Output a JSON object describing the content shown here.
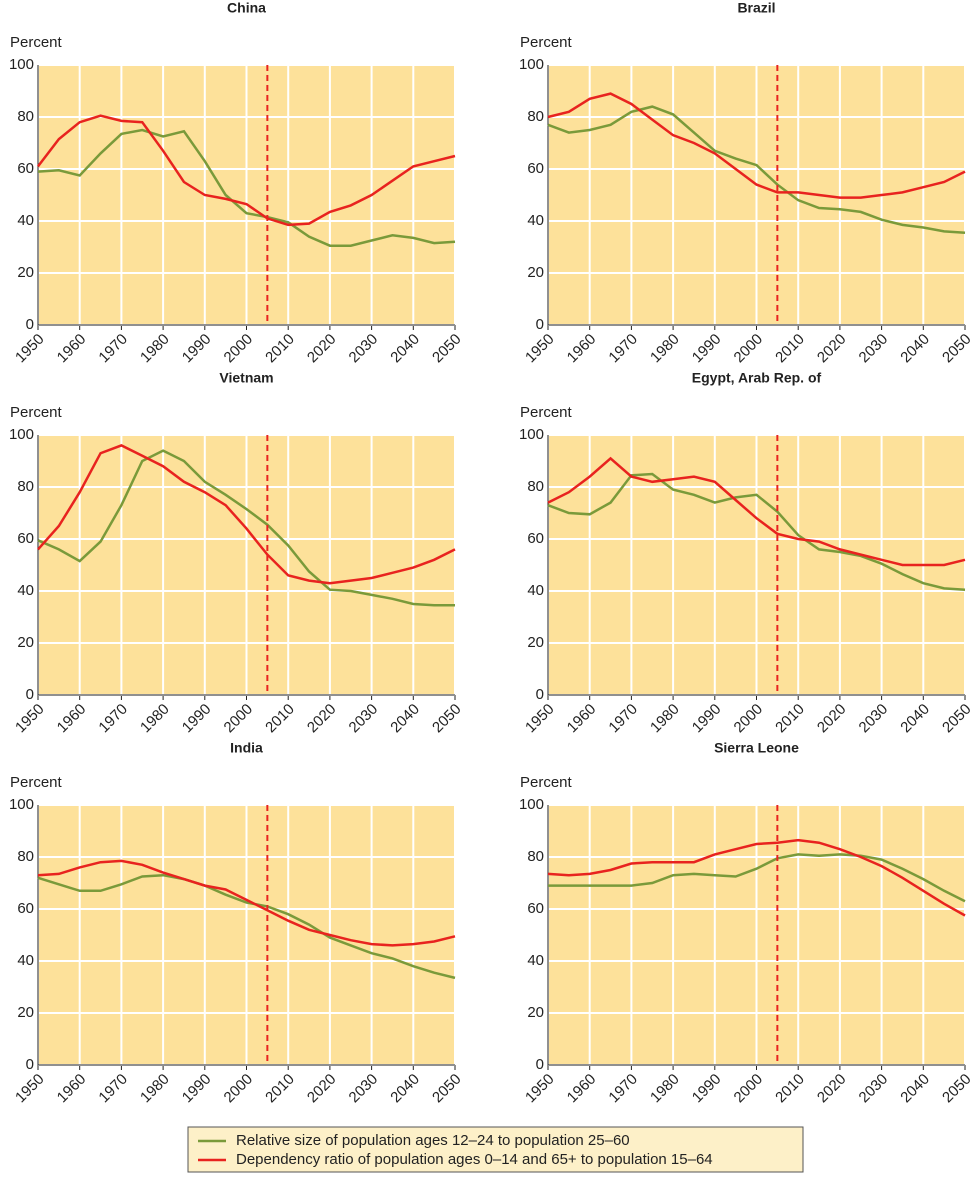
{
  "legend": [
    {
      "name": "Relative size of population ages 12–24 to population 25–60",
      "color": "#7a9a3a"
    },
    {
      "name": "Dependency ratio of population ages 0–14 and 65+ to population 15–64",
      "color": "#e8231f"
    }
  ],
  "chart_data": [
    {
      "type": "line",
      "title": "China",
      "y_label": "Percent",
      "x": [
        1950,
        1955,
        1960,
        1965,
        1970,
        1975,
        1980,
        1985,
        1990,
        1995,
        2000,
        2005,
        2010,
        2015,
        2020,
        2025,
        2030,
        2035,
        2040,
        2045,
        2050
      ],
      "xlim": [
        1950,
        2050
      ],
      "xticks": [
        1950,
        1960,
        1970,
        1980,
        1990,
        2000,
        2010,
        2020,
        2030,
        2040,
        2050
      ],
      "ylim": [
        0,
        100
      ],
      "yticks": [
        0,
        20,
        40,
        60,
        80,
        100
      ],
      "grid": true,
      "vline": 2005,
      "series": [
        {
          "color": "#7a9a3a",
          "values": [
            59,
            59.5,
            57.5,
            66,
            73.5,
            75,
            72.5,
            74.5,
            63,
            50,
            43,
            41.5,
            39.5,
            34,
            30.5,
            30.5,
            32.5,
            34.5,
            33.5,
            31.5,
            32
          ]
        },
        {
          "color": "#e8231f",
          "values": [
            61,
            71.5,
            78,
            80.5,
            78.5,
            78,
            67,
            55,
            50,
            48.5,
            46.5,
            41,
            38.5,
            39,
            43.5,
            46,
            50,
            55.5,
            61,
            63,
            65
          ]
        }
      ]
    },
    {
      "type": "line",
      "title": "Brazil",
      "y_label": "Percent",
      "x": [
        1950,
        1955,
        1960,
        1965,
        1970,
        1975,
        1980,
        1985,
        1990,
        1995,
        2000,
        2005,
        2010,
        2015,
        2020,
        2025,
        2030,
        2035,
        2040,
        2045,
        2050
      ],
      "xlim": [
        1950,
        2050
      ],
      "xticks": [
        1950,
        1960,
        1970,
        1980,
        1990,
        2000,
        2010,
        2020,
        2030,
        2040,
        2050
      ],
      "ylim": [
        0,
        100
      ],
      "yticks": [
        0,
        20,
        40,
        60,
        80,
        100
      ],
      "grid": true,
      "vline": 2005,
      "series": [
        {
          "color": "#7a9a3a",
          "values": [
            77,
            74,
            75,
            77,
            82,
            84,
            81,
            74,
            67,
            64,
            61.5,
            54,
            48,
            45,
            44.5,
            43.5,
            40.5,
            38.5,
            37.5,
            36,
            35.5
          ]
        },
        {
          "color": "#e8231f",
          "values": [
            80,
            82,
            87,
            89,
            85,
            79,
            73,
            70,
            66,
            60,
            54,
            51,
            51,
            50,
            49,
            49,
            50,
            51,
            53,
            55,
            59
          ]
        }
      ]
    },
    {
      "type": "line",
      "title": "Vietnam",
      "y_label": "Percent",
      "x": [
        1950,
        1955,
        1960,
        1965,
        1970,
        1975,
        1980,
        1985,
        1990,
        1995,
        2000,
        2005,
        2010,
        2015,
        2020,
        2025,
        2030,
        2035,
        2040,
        2045,
        2050
      ],
      "xlim": [
        1950,
        2050
      ],
      "xticks": [
        1950,
        1960,
        1970,
        1980,
        1990,
        2000,
        2010,
        2020,
        2030,
        2040,
        2050
      ],
      "ylim": [
        0,
        100
      ],
      "yticks": [
        0,
        20,
        40,
        60,
        80,
        100
      ],
      "grid": true,
      "vline": 2005,
      "series": [
        {
          "color": "#7a9a3a",
          "values": [
            59.5,
            56,
            51.5,
            59,
            73,
            90,
            94,
            90,
            82,
            77,
            71.5,
            65.5,
            57.5,
            47.5,
            40.5,
            40,
            38.5,
            37,
            35,
            34.5,
            34.5
          ]
        },
        {
          "color": "#e8231f",
          "values": [
            56,
            65,
            78,
            93,
            96,
            92,
            88,
            82,
            78,
            73,
            64,
            54,
            46,
            44,
            43,
            44,
            45,
            47,
            49,
            52,
            56
          ]
        }
      ]
    },
    {
      "type": "line",
      "title": "Egypt, Arab Rep. of",
      "y_label": "Percent",
      "x": [
        1950,
        1955,
        1960,
        1965,
        1970,
        1975,
        1980,
        1985,
        1990,
        1995,
        2000,
        2005,
        2010,
        2015,
        2020,
        2025,
        2030,
        2035,
        2040,
        2045,
        2050
      ],
      "xlim": [
        1950,
        2050
      ],
      "xticks": [
        1950,
        1960,
        1970,
        1980,
        1990,
        2000,
        2010,
        2020,
        2030,
        2040,
        2050
      ],
      "ylim": [
        0,
        100
      ],
      "yticks": [
        0,
        20,
        40,
        60,
        80,
        100
      ],
      "grid": true,
      "vline": 2005,
      "series": [
        {
          "color": "#7a9a3a",
          "values": [
            73,
            70,
            69.5,
            74,
            84.5,
            85,
            79,
            77,
            74,
            76,
            77,
            70.5,
            61.5,
            56,
            55,
            53.5,
            50.5,
            46.5,
            43,
            41,
            40.5
          ]
        },
        {
          "color": "#e8231f",
          "values": [
            74,
            78,
            84,
            91,
            84,
            82,
            83,
            84,
            82,
            75,
            68,
            62,
            60,
            59,
            56,
            54,
            52,
            50,
            50,
            50,
            52
          ]
        }
      ]
    },
    {
      "type": "line",
      "title": "India",
      "y_label": "Percent",
      "x": [
        1950,
        1955,
        1960,
        1965,
        1970,
        1975,
        1980,
        1985,
        1990,
        1995,
        2000,
        2005,
        2010,
        2015,
        2020,
        2025,
        2030,
        2035,
        2040,
        2045,
        2050
      ],
      "xlim": [
        1950,
        2050
      ],
      "xticks": [
        1950,
        1960,
        1970,
        1980,
        1990,
        2000,
        2010,
        2020,
        2030,
        2040,
        2050
      ],
      "ylim": [
        0,
        100
      ],
      "yticks": [
        0,
        20,
        40,
        60,
        80,
        100
      ],
      "grid": true,
      "vline": 2005,
      "series": [
        {
          "color": "#7a9a3a",
          "values": [
            72,
            69.5,
            67,
            67,
            69.5,
            72.5,
            73,
            71.5,
            69,
            65.5,
            62.5,
            61,
            58,
            54,
            49,
            46,
            43,
            41,
            38,
            35.5,
            33.5
          ]
        },
        {
          "color": "#e8231f",
          "values": [
            73,
            73.5,
            76,
            78,
            78.5,
            77,
            74,
            71.5,
            69,
            67.5,
            63.5,
            59.5,
            55.5,
            52,
            50,
            48,
            46.5,
            46,
            46.5,
            47.5,
            49.5
          ]
        }
      ]
    },
    {
      "type": "line",
      "title": "Sierra Leone",
      "y_label": "Percent",
      "x": [
        1950,
        1955,
        1960,
        1965,
        1970,
        1975,
        1980,
        1985,
        1990,
        1995,
        2000,
        2005,
        2010,
        2015,
        2020,
        2025,
        2030,
        2035,
        2040,
        2045,
        2050
      ],
      "xlim": [
        1950,
        2050
      ],
      "xticks": [
        1950,
        1960,
        1970,
        1980,
        1990,
        2000,
        2010,
        2020,
        2030,
        2040,
        2050
      ],
      "ylim": [
        0,
        100
      ],
      "yticks": [
        0,
        20,
        40,
        60,
        80,
        100
      ],
      "grid": true,
      "vline": 2005,
      "series": [
        {
          "color": "#7a9a3a",
          "values": [
            69,
            69,
            69,
            69,
            69,
            70,
            73,
            73.5,
            73,
            72.5,
            75.5,
            79.5,
            81,
            80.5,
            81,
            80.5,
            79,
            75.5,
            71.5,
            67,
            63
          ]
        },
        {
          "color": "#e8231f",
          "values": [
            73.5,
            73,
            73.5,
            75,
            77.5,
            78,
            78,
            78,
            81,
            83,
            85,
            85.5,
            86.5,
            85.5,
            83,
            80,
            76.5,
            72,
            67,
            62,
            57.5
          ]
        }
      ]
    }
  ]
}
